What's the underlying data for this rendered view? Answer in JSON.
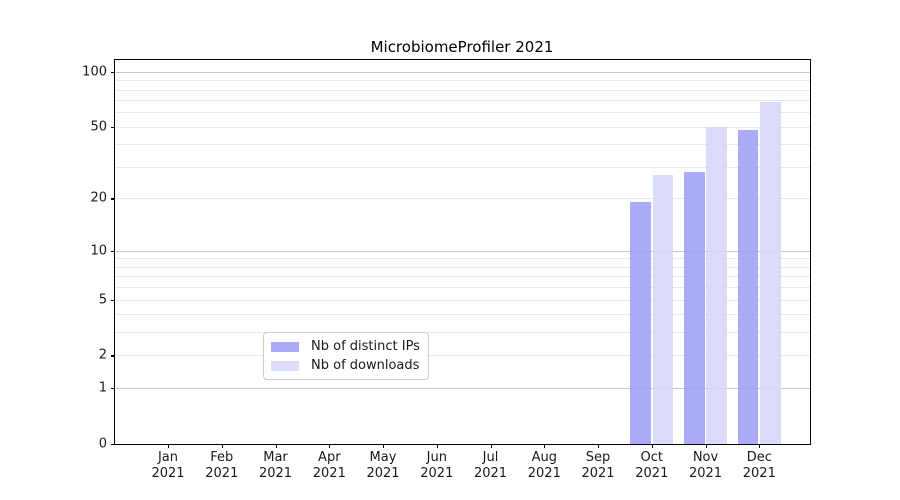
{
  "title": "MicrobiomeProfiler 2021",
  "chart_data": {
    "type": "bar",
    "title": "MicrobiomeProfiler 2021",
    "xlabel": "",
    "ylabel": "",
    "categories": [
      "Jan 2021",
      "Feb 2021",
      "Mar 2021",
      "Apr 2021",
      "May 2021",
      "Jun 2021",
      "Jul 2021",
      "Aug 2021",
      "Sep 2021",
      "Oct 2021",
      "Nov 2021",
      "Dec 2021"
    ],
    "series": [
      {
        "name": "Nb of distinct IPs",
        "color": "rgba(156,156,248,0.85)",
        "color_on_white": "#abaaf8",
        "values": [
          0,
          0,
          0,
          0,
          0,
          0,
          0,
          0,
          0,
          19,
          28,
          48
        ]
      },
      {
        "name": "Nb of downloads",
        "color": "rgba(213,213,250,0.85)",
        "color_on_white": "#dbdbfa",
        "values": [
          0,
          0,
          0,
          0,
          0,
          0,
          0,
          0,
          0,
          27,
          50,
          68
        ]
      }
    ],
    "y_axis": {
      "scale": "log10(value+1)",
      "tick_values": [
        0,
        1,
        2,
        5,
        10,
        20,
        50,
        100
      ],
      "decade_gridlines": [
        1,
        10,
        100
      ],
      "minor_gridlines": [
        2,
        3,
        4,
        5,
        6,
        7,
        8,
        9,
        20,
        30,
        40,
        50,
        60,
        70,
        80,
        90
      ],
      "max_value": 116
    },
    "grid": "horizontal",
    "legend_position": "lower center"
  },
  "legend": {
    "items": [
      {
        "label": "Nb of distinct IPs",
        "swatch_color": "rgba(156,156,248,0.85)"
      },
      {
        "label": "Nb of downloads",
        "swatch_color": "rgba(213,213,250,0.85)"
      }
    ]
  }
}
